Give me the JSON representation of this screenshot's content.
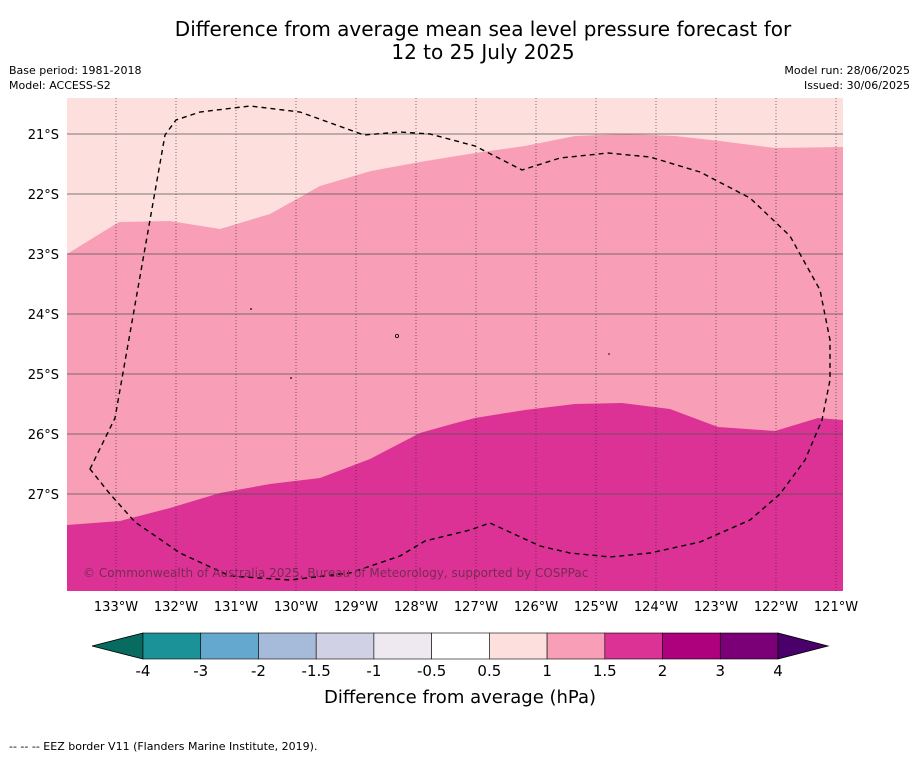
{
  "title_line1": "Difference from average mean sea level pressure forecast for",
  "title_line2": "12 to 25 July 2025",
  "meta_left": {
    "base_period": "Base period: 1981-2018",
    "model": "Model: ACCESS-S2"
  },
  "meta_right": {
    "model_run": "Model run: 28/06/2025",
    "issued": "Issued: 30/06/2025"
  },
  "copyright": "© Commonwealth of Australia 2025, Bureau of Meteorology, supported by COSPPac",
  "map": {
    "lon_labels": [
      "133°W",
      "132°W",
      "131°W",
      "130°W",
      "129°W",
      "128°W",
      "127°W",
      "126°W",
      "125°W",
      "124°W",
      "123°W",
      "122°W",
      "121°W"
    ],
    "lat_labels": [
      "21°S",
      "22°S",
      "23°S",
      "24°S",
      "25°S",
      "26°S",
      "27°S"
    ]
  },
  "colorbar": {
    "ticks": [
      "-4",
      "-3",
      "-2",
      "-1.5",
      "-1",
      "-0.5",
      "0.5",
      "1",
      "1.5",
      "2",
      "3",
      "4"
    ],
    "colors": [
      "#1b9298",
      "#64a8cf",
      "#a6bada",
      "#d0d1e5",
      "#eee8f1",
      "#ffffff",
      "#fde0de",
      "#f89eb6",
      "#dc3295",
      "#ad017e",
      "#7b0077"
    ],
    "extend_low": "#086b60",
    "extend_high": "#49006a",
    "label": "Difference from average (hPa)"
  },
  "legend_note": "--  --  -- EEZ border V11 (Flanders Marine Institute, 2019).",
  "fill_colors": {
    "band_0_5_1": "#fde0de",
    "band_1_1_5": "#f89eb6",
    "band_1_5_2": "#dc3295"
  }
}
